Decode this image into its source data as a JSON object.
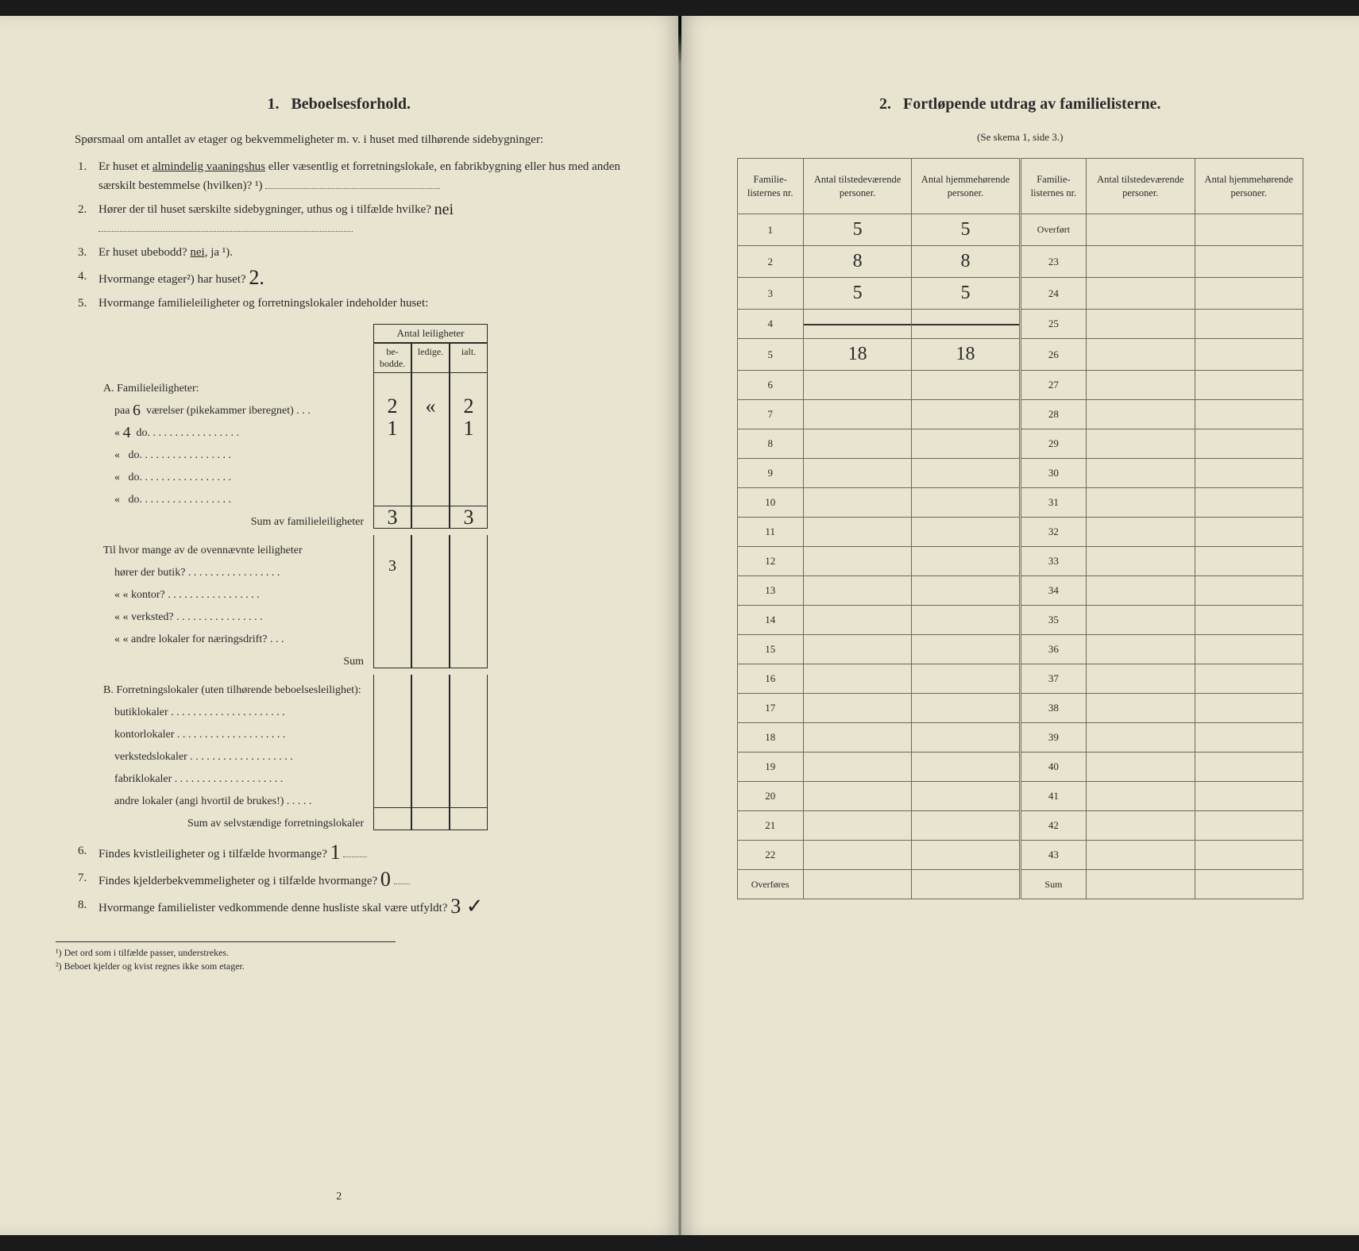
{
  "left": {
    "section_num": "1.",
    "section_title": "Beboelsesforhold.",
    "intro": "Spørsmaal om antallet av etager og bekvemmeligheter m. v. i huset med tilhørende sidebygninger:",
    "q1": {
      "num": "1.",
      "text_before": "Er huset et ",
      "underlined": "almindelig vaaningshus",
      "text_after": " eller væsentlig et forretningslokale, en fabrikbygning eller hus med anden særskilt bestemmelse (hvilken)? ¹)"
    },
    "q2": {
      "num": "2.",
      "text": "Hører der til huset særskilte sidebygninger, uthus og i tilfælde hvilke?",
      "hand": "nei"
    },
    "q3": {
      "num": "3.",
      "text_before": "Er huset ubebodd? ",
      "underlined": "nei,",
      "text_after": " ja ¹)."
    },
    "q4": {
      "num": "4.",
      "text": "Hvormange etager²) har huset?",
      "hand": "2."
    },
    "q5": {
      "num": "5.",
      "text": "Hvormange familieleiligheter og forretningslokaler indeholder huset:"
    },
    "apt_table": {
      "header_top": "Antal leiligheter",
      "col_be": "be-bodde.",
      "col_ledige": "ledige.",
      "col_ialt": "ialt.",
      "sectionA": "A. Familieleiligheter:",
      "rowsA": [
        {
          "label_pre": "paa",
          "hand_rooms": "6",
          "label_post": "værelser (pikekammer iberegnet)  .  .  .",
          "be": "2",
          "ledige": "«",
          "ialt": "2"
        },
        {
          "label_pre": "«",
          "hand_rooms": "4",
          "label_post": "do.   .  .  .  .  .  .  .  .  .  .  .  .  .  .  .  .",
          "be": "1",
          "ledige": "",
          "ialt": "1"
        },
        {
          "label_pre": "«",
          "hand_rooms": "",
          "label_post": "do.   .  .  .  .  .  .  .  .  .  .  .  .  .  .  .  .",
          "be": "",
          "ledige": "",
          "ialt": ""
        },
        {
          "label_pre": "«",
          "hand_rooms": "",
          "label_post": "do.   .  .  .  .  .  .  .  .  .  .  .  .  .  .  .  .",
          "be": "",
          "ledige": "",
          "ialt": ""
        },
        {
          "label_pre": "«",
          "hand_rooms": "",
          "label_post": "do.   .  .  .  .  .  .  .  .  .  .  .  .  .  .  .  .",
          "be": "",
          "ledige": "",
          "ialt": ""
        }
      ],
      "sumA_label": "Sum av familieleiligheter",
      "sumA": {
        "be": "3",
        "ledige": "",
        "ialt": "3"
      },
      "midQ": {
        "line1": "Til hvor mange av de ovennævnte leiligheter",
        "items": [
          {
            "label": "hører der butik?  .  .  .  .  .  .  .  .  .  .  .  .  .  .  .  .  .",
            "hand": "3"
          },
          {
            "label": "«     «  kontor?  .  .  .  .  .  .  .  .  .  .  .  .  .  .  .  .  .",
            "hand": ""
          },
          {
            "label": "«     «  verksted?  .  .  .  .  .  .  .  .  .  .  .  .  .  .  .  .",
            "hand": ""
          },
          {
            "label": "«     «  andre lokaler for næringsdrift?  .  .  .",
            "hand": ""
          }
        ],
        "sum_label": "Sum"
      },
      "sectionB": "B. Forretningslokaler (uten tilhørende beboelsesleilighet):",
      "rowsB": [
        "butiklokaler  .  .  .  .  .  .  .  .  .  .  .  .  .  .  .  .  .  .  .  .  .",
        "kontorlokaler  .  .  .  .  .  .  .  .  .  .  .  .  .  .  .  .  .  .  .  .",
        "verkstedslokaler .  .  .  .  .  .  .  .  .  .  .  .  .  .  .  .  .  .  .",
        "fabriklokaler  .  .  .  .  .  .  .  .  .  .  .  .  .  .  .  .  .  .  .  .",
        "andre lokaler (angi hvortil de brukes!)  .  .  .  .  ."
      ],
      "sumB_label": "Sum av selvstændige forretningslokaler"
    },
    "q6": {
      "num": "6.",
      "text": "Findes kvistleiligheter og i tilfælde hvormange?",
      "hand": "1"
    },
    "q7": {
      "num": "7.",
      "text": "Findes kjelderbekvemmeligheter og i tilfælde hvormange?",
      "hand": "0"
    },
    "q8": {
      "num": "8.",
      "text": "Hvormange familielister vedkommende denne husliste skal være utfyldt?",
      "hand": "3 ✓"
    },
    "footnote1": "¹) Det ord som i tilfælde passer, understrekes.",
    "footnote2": "²) Beboet kjelder og kvist regnes ikke som etager.",
    "pagenum": "2"
  },
  "right": {
    "section_num": "2.",
    "section_title": "Fortløpende utdrag av familielisterne.",
    "subtitle": "(Se skema 1, side 3.)",
    "headers": {
      "nr": "Familie-listernes nr.",
      "pres": "Antal tilstedeværende personer.",
      "home": "Antal hjemmehørende personer.",
      "overfort": "Overført",
      "sum": "Sum",
      "overfores": "Overføres"
    },
    "left_rows": [
      {
        "nr": "1",
        "pres_hand": "5",
        "home_hand": "5"
      },
      {
        "nr": "2",
        "pres_hand": "8",
        "home_hand": "8"
      },
      {
        "nr": "3",
        "pres_hand": "5",
        "home_hand": "5"
      },
      {
        "nr": "4",
        "pres_hand": "",
        "home_hand": "",
        "struck": true
      },
      {
        "nr": "5",
        "pres_hand": "18",
        "home_hand": "18"
      },
      {
        "nr": "6",
        "pres_hand": "",
        "home_hand": ""
      },
      {
        "nr": "7",
        "pres_hand": "",
        "home_hand": ""
      },
      {
        "nr": "8",
        "pres_hand": "",
        "home_hand": ""
      },
      {
        "nr": "9",
        "pres_hand": "",
        "home_hand": ""
      },
      {
        "nr": "10",
        "pres_hand": "",
        "home_hand": ""
      },
      {
        "nr": "11",
        "pres_hand": "",
        "home_hand": ""
      },
      {
        "nr": "12",
        "pres_hand": "",
        "home_hand": ""
      },
      {
        "nr": "13",
        "pres_hand": "",
        "home_hand": ""
      },
      {
        "nr": "14",
        "pres_hand": "",
        "home_hand": ""
      },
      {
        "nr": "15",
        "pres_hand": "",
        "home_hand": ""
      },
      {
        "nr": "16",
        "pres_hand": "",
        "home_hand": ""
      },
      {
        "nr": "17",
        "pres_hand": "",
        "home_hand": ""
      },
      {
        "nr": "18",
        "pres_hand": "",
        "home_hand": ""
      },
      {
        "nr": "19",
        "pres_hand": "",
        "home_hand": ""
      },
      {
        "nr": "20",
        "pres_hand": "",
        "home_hand": ""
      },
      {
        "nr": "21",
        "pres_hand": "",
        "home_hand": ""
      },
      {
        "nr": "22",
        "pres_hand": "",
        "home_hand": ""
      }
    ],
    "right_rows": [
      {
        "nr": "23"
      },
      {
        "nr": "24"
      },
      {
        "nr": "25"
      },
      {
        "nr": "26"
      },
      {
        "nr": "27"
      },
      {
        "nr": "28"
      },
      {
        "nr": "29"
      },
      {
        "nr": "30"
      },
      {
        "nr": "31"
      },
      {
        "nr": "32"
      },
      {
        "nr": "33"
      },
      {
        "nr": "34"
      },
      {
        "nr": "35"
      },
      {
        "nr": "36"
      },
      {
        "nr": "37"
      },
      {
        "nr": "38"
      },
      {
        "nr": "39"
      },
      {
        "nr": "40"
      },
      {
        "nr": "41"
      },
      {
        "nr": "42"
      },
      {
        "nr": "43"
      }
    ]
  },
  "colors": {
    "paper": "#e8e4d0",
    "ink": "#2a2a2a",
    "rule": "#6a6a5a",
    "hand": "#222222"
  }
}
